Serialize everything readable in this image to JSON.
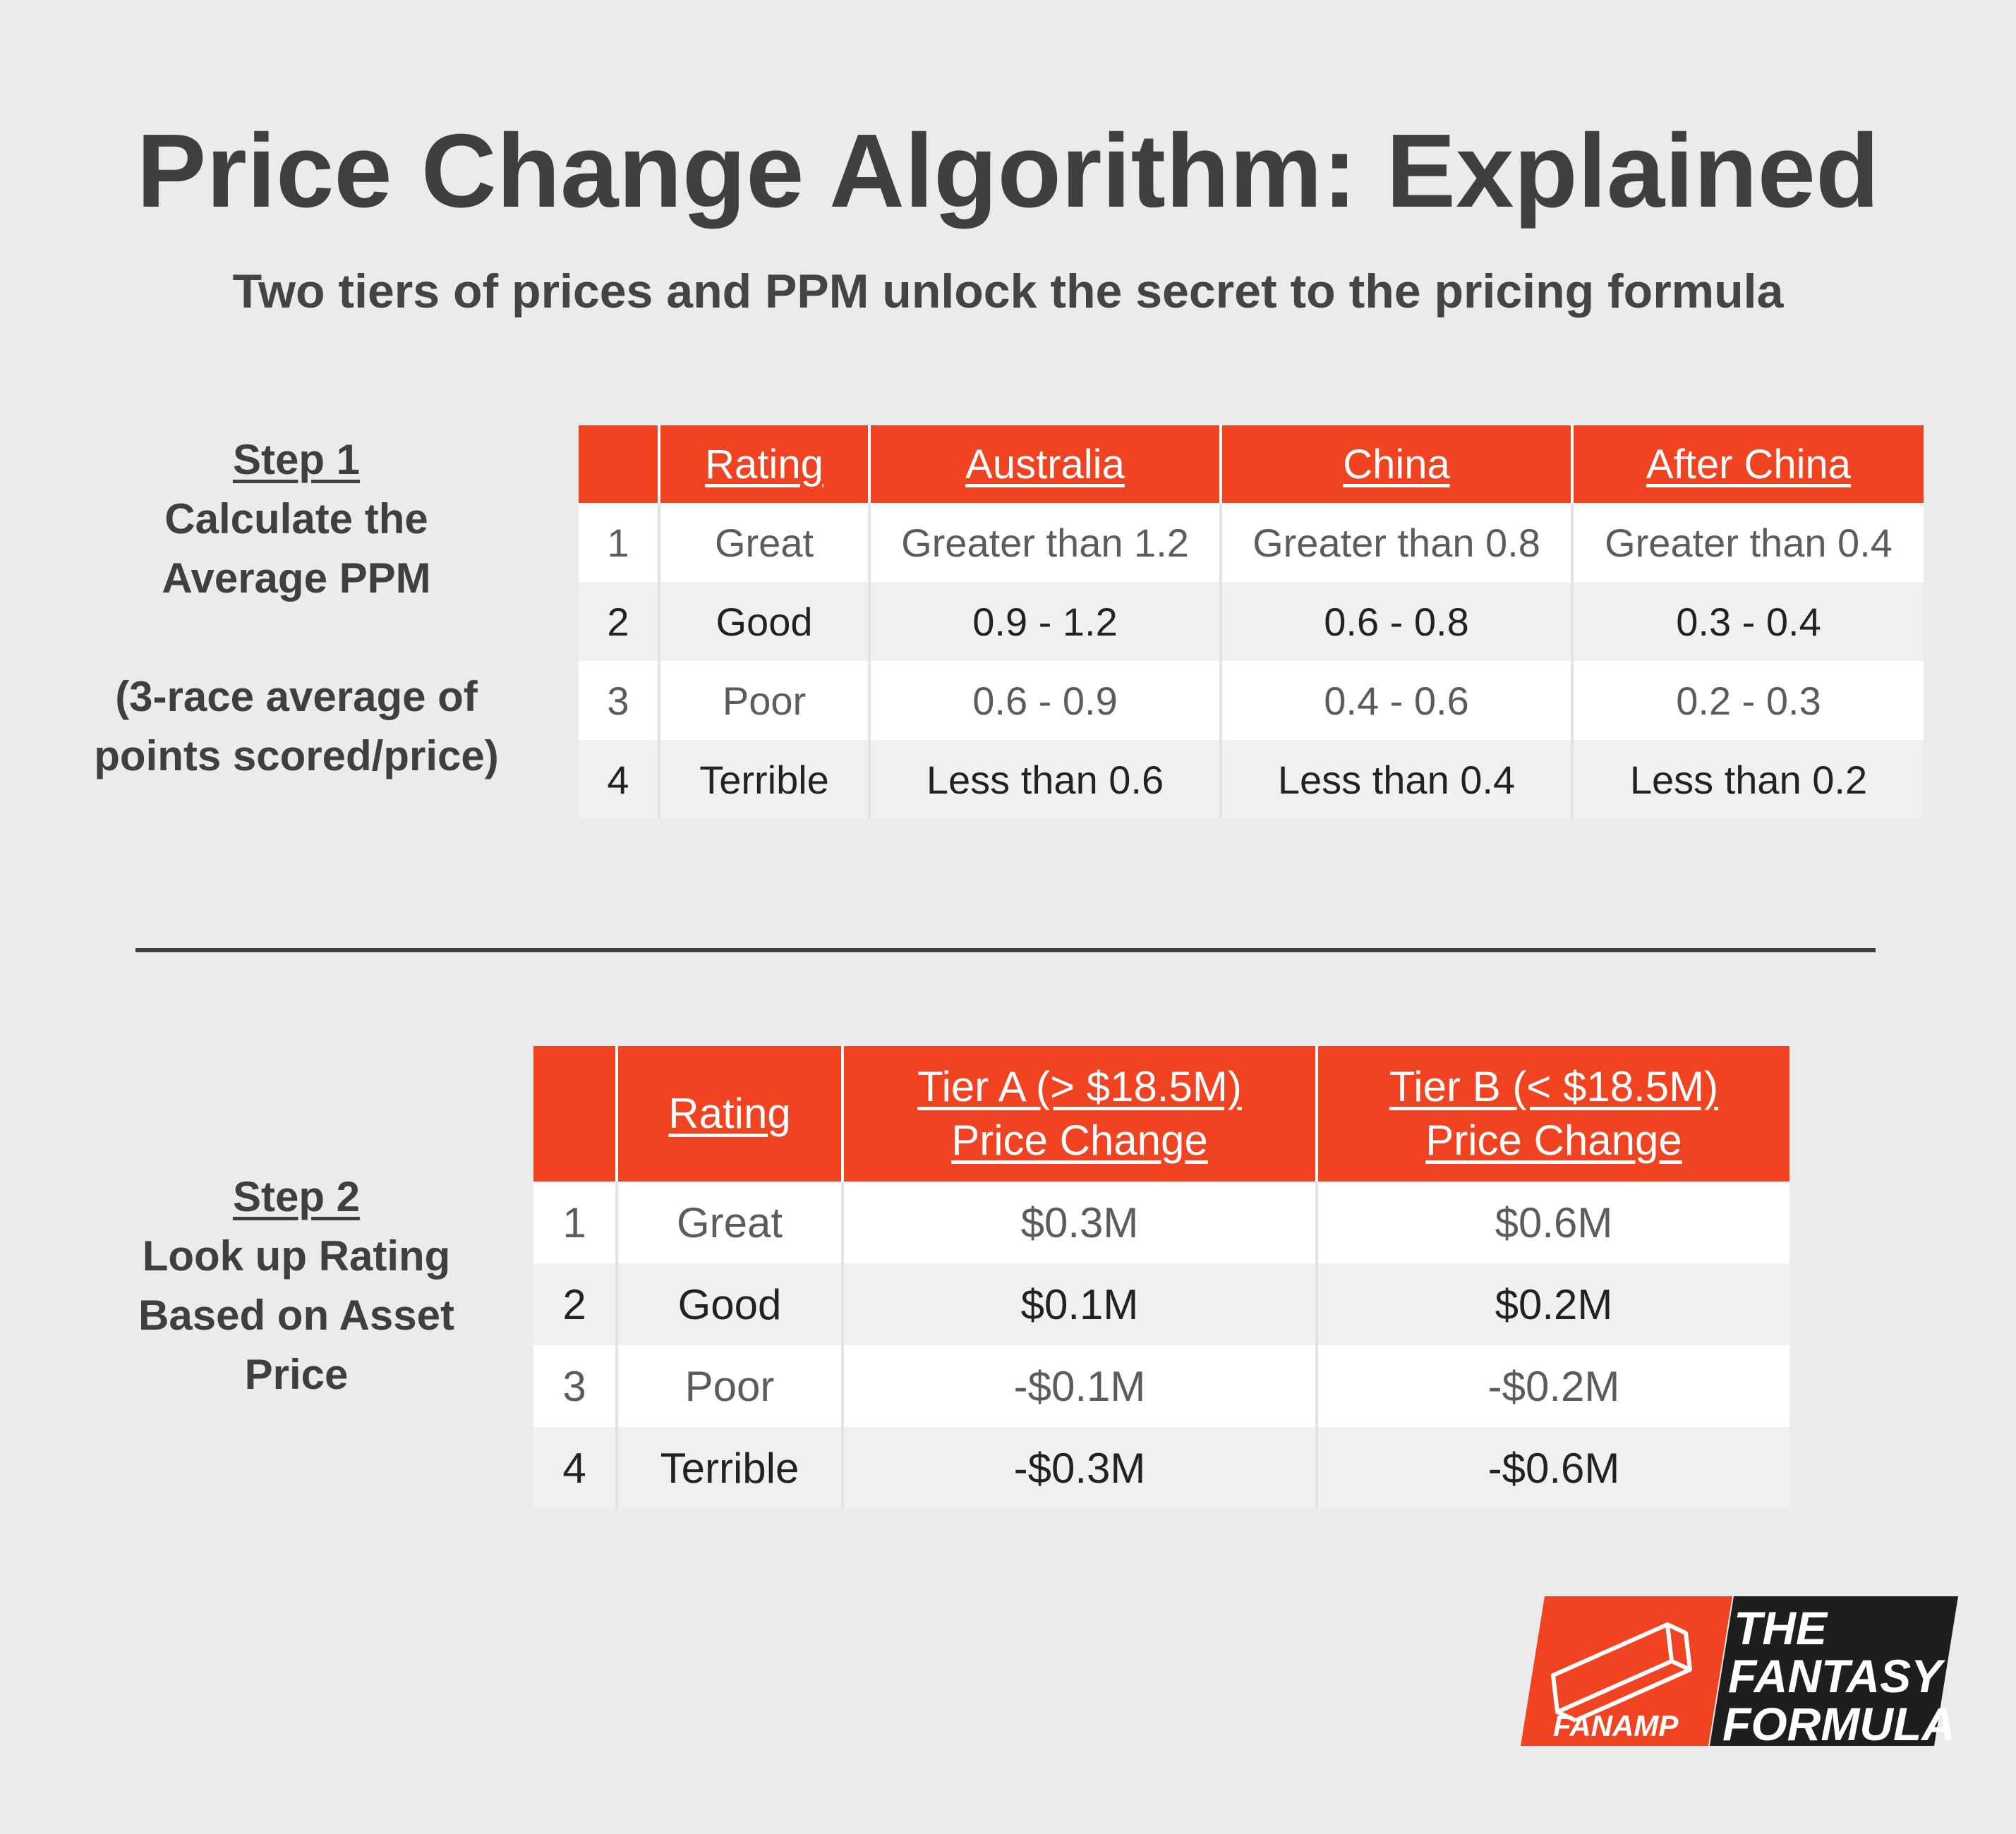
{
  "title": "Price Change Algorithm: Explained",
  "subtitle": "Two tiers of prices and PPM unlock the secret to the pricing formula",
  "step1": {
    "heading": "Step 1",
    "lines": [
      "Calculate the",
      "Average PPM"
    ],
    "note_lines": [
      "(3-race average of",
      "points scored/price)"
    ]
  },
  "step2": {
    "heading": "Step 2",
    "lines": [
      "Look up Rating",
      "Based on Asset",
      "Price"
    ]
  },
  "table1": {
    "headers": [
      "",
      "Rating",
      "Australia",
      "China",
      "After China"
    ],
    "rows": [
      [
        "1",
        "Great",
        "Greater than 1.2",
        "Greater than 0.8",
        "Greater than 0.4"
      ],
      [
        "2",
        "Good",
        "0.9 - 1.2",
        "0.6 - 0.8",
        "0.3 - 0.4"
      ],
      [
        "3",
        "Poor",
        "0.6 - 0.9",
        "0.4 - 0.6",
        "0.2 - 0.3"
      ],
      [
        "4",
        "Terrible",
        "Less than 0.6",
        "Less than 0.4",
        "Less than 0.2"
      ]
    ]
  },
  "table2": {
    "headers": [
      [
        ""
      ],
      [
        "Rating"
      ],
      [
        "Tier A (> $18.5M)",
        "Price Change"
      ],
      [
        "Tier B (< $18.5M)",
        "Price Change"
      ]
    ],
    "rows": [
      [
        "1",
        "Great",
        "$0.3M",
        "$0.6M"
      ],
      [
        "2",
        "Good",
        "$0.1M",
        "$0.2M"
      ],
      [
        "3",
        "Poor",
        "-$0.1M",
        "-$0.2M"
      ],
      [
        "4",
        "Terrible",
        "-$0.3M",
        "-$0.6M"
      ]
    ]
  },
  "logo": {
    "left_text": "FANAMP",
    "right_lines": [
      "THE",
      "FANTASY",
      "FORMULA"
    ],
    "accent_color": "#f04321",
    "dark_color": "#1e1e1e"
  },
  "colors": {
    "background": "#ebebeb",
    "header": "#f04321",
    "text": "#3f3f3f"
  }
}
